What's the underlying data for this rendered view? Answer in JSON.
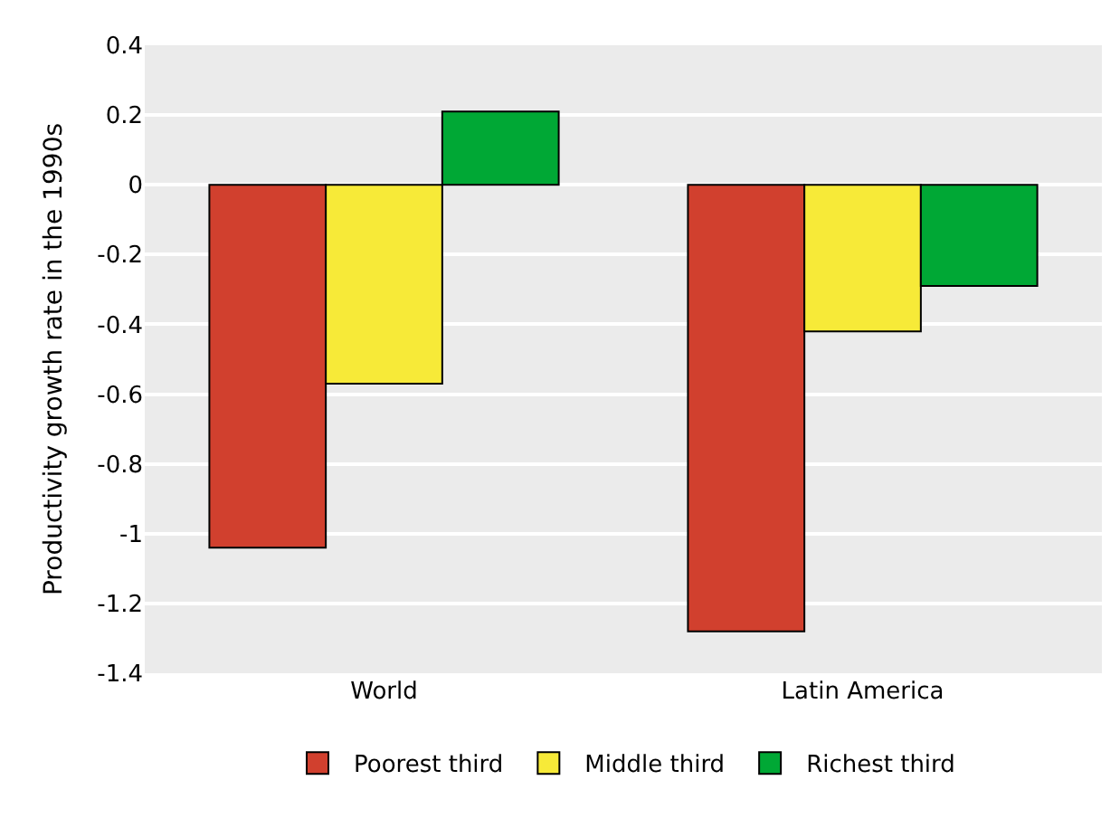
{
  "chart_data": {
    "type": "bar",
    "ylabel": "Productivity growth rate in the 1990s",
    "categories": [
      "World",
      "Latin America"
    ],
    "series": [
      {
        "name": "Poorest third",
        "color": "#d1402e",
        "values": [
          -1.04,
          -1.28
        ]
      },
      {
        "name": "Middle third",
        "color": "#f7ea38",
        "values": [
          -0.57,
          -0.42
        ]
      },
      {
        "name": "Richest third",
        "color": "#00a835",
        "values": [
          0.21,
          -0.29
        ]
      }
    ],
    "ylim": [
      -1.4,
      0.4
    ],
    "yticks": [
      -1.4,
      -1.2,
      -1,
      -0.8,
      -0.6,
      -0.4,
      -0.2,
      0,
      0.2,
      0.4
    ],
    "grid": "y",
    "legend": "bottom"
  }
}
